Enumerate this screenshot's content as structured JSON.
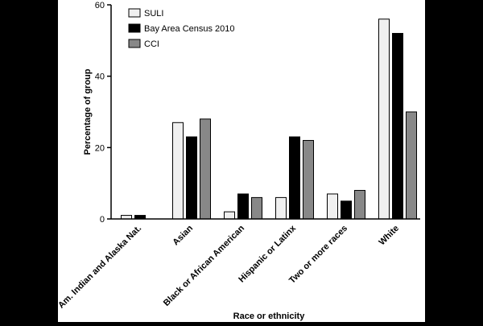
{
  "chart_data": {
    "type": "bar",
    "xlabel": "Race or ethnicity",
    "ylabel": "Percentage of group",
    "ylim": [
      0,
      60
    ],
    "yticks": [
      0,
      20,
      40,
      60
    ],
    "grid": false,
    "legend_position": "top-left",
    "categories": [
      "Am. Indian and Alaska Nat.",
      "Asian",
      "Black or African American",
      "Hispanic or Latinx",
      "Two or more races",
      "White"
    ],
    "series": [
      {
        "name": "SULI",
        "color": "#f0f0f0",
        "values": [
          1,
          27,
          2,
          6,
          7,
          56
        ]
      },
      {
        "name": "Bay Area Census 2010",
        "color": "#000000",
        "values": [
          1,
          23,
          7,
          23,
          5,
          52
        ]
      },
      {
        "name": "CCI",
        "color": "#888888",
        "values": [
          0,
          28,
          6,
          22,
          8,
          30
        ]
      }
    ]
  }
}
